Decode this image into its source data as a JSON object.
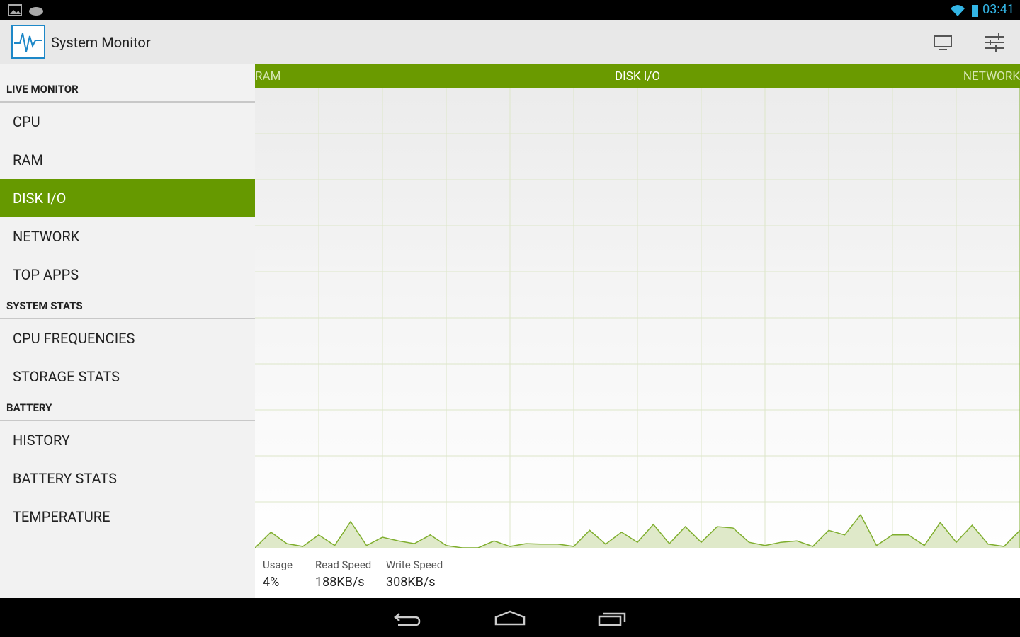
{
  "status_bar": {
    "time": "03:41"
  },
  "action_bar": {
    "title": "System Monitor"
  },
  "sidebar": {
    "sections": [
      {
        "header": "LIVE MONITOR",
        "items": [
          "CPU",
          "RAM",
          "DISK I/O",
          "NETWORK",
          "TOP APPS"
        ]
      },
      {
        "header": "SYSTEM STATS",
        "items": [
          "CPU FREQUENCIES",
          "STORAGE STATS"
        ]
      },
      {
        "header": "BATTERY",
        "items": [
          "HISTORY",
          "BATTERY STATS",
          "TEMPERATURE"
        ]
      }
    ]
  },
  "tabs": [
    "RAM",
    "DISK I/O",
    "NETWORK"
  ],
  "stats": [
    {
      "label": "Usage",
      "value": "4%"
    },
    {
      "label": "Read Speed",
      "value": "188KB/s"
    },
    {
      "label": "Write Speed",
      "value": "308KB/s"
    }
  ],
  "chart_data": {
    "type": "area",
    "color": "#7fae2e",
    "values": [
      0,
      3.4,
      0.9,
      0.3,
      2.8,
      0.5,
      5.7,
      0.5,
      2.3,
      1.5,
      0.9,
      2.8,
      0.5,
      0,
      0,
      1.5,
      0.3,
      0.9,
      0.8,
      0.8,
      0.3,
      3.8,
      0.8,
      3.4,
      1.2,
      5.1,
      0.9,
      4.6,
      1.2,
      4.6,
      4.3,
      1.2,
      0.5,
      1.2,
      1.5,
      0.3,
      3.8,
      2.8,
      7.2,
      0.5,
      2.8,
      2.8,
      0.5,
      5.5,
      1.2,
      4.9,
      0.8,
      0.3,
      3.8
    ],
    "ylim": [
      0,
      100
    ],
    "yticks": [
      0,
      10,
      20,
      30,
      40,
      50,
      60,
      70,
      80,
      90,
      100
    ],
    "grid": true
  }
}
